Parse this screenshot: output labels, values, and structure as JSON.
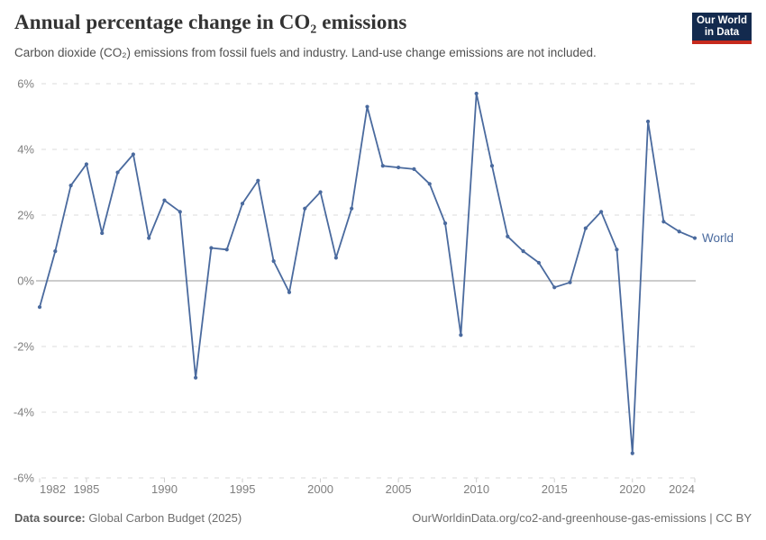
{
  "header": {
    "title": "Annual percentage change in CO₂ emissions",
    "subtitle": "Carbon dioxide (CO₂) emissions from fossil fuels and industry. Land-use change emissions are not included.",
    "logo": {
      "line1": "Our World",
      "line2": "in Data"
    }
  },
  "chart_data": {
    "type": "line",
    "title": "Annual percentage change in CO₂ emissions",
    "xlabel": "",
    "ylabel": "",
    "xlim": [
      1982,
      2024
    ],
    "ylim": [
      -6,
      6
    ],
    "grid": "horizontal-dashed",
    "legend_position": "end-of-line",
    "x_ticks": [
      1982,
      1985,
      1990,
      1995,
      2000,
      2005,
      2010,
      2015,
      2020,
      2024
    ],
    "y_ticks": [
      6,
      4,
      2,
      0,
      -2,
      -4,
      -6
    ],
    "y_tick_suffix": "%",
    "end_label": "World",
    "series": [
      {
        "name": "World",
        "x": [
          1982,
          1983,
          1984,
          1985,
          1986,
          1987,
          1988,
          1989,
          1990,
          1991,
          1992,
          1993,
          1994,
          1995,
          1996,
          1997,
          1998,
          1999,
          2000,
          2001,
          2002,
          2003,
          2004,
          2005,
          2006,
          2007,
          2008,
          2009,
          2010,
          2011,
          2012,
          2013,
          2014,
          2015,
          2016,
          2017,
          2018,
          2019,
          2020,
          2021,
          2022,
          2023,
          2024
        ],
        "values": [
          -0.8,
          0.9,
          2.9,
          3.55,
          1.45,
          3.3,
          3.85,
          1.3,
          2.45,
          2.1,
          -2.95,
          1.0,
          0.95,
          2.35,
          3.05,
          0.6,
          -0.35,
          2.2,
          2.7,
          0.7,
          2.2,
          5.3,
          3.5,
          3.45,
          3.4,
          2.95,
          1.75,
          -1.65,
          5.7,
          3.5,
          1.35,
          0.9,
          0.55,
          -0.2,
          -0.05,
          1.6,
          2.1,
          0.95,
          -5.25,
          4.85,
          1.8,
          1.5,
          1.3
        ]
      }
    ]
  },
  "footer": {
    "source_label": "Data source:",
    "source_value": "Global Carbon Budget (2025)",
    "right_text": "OurWorldinData.org/co2-and-greenhouse-gas-emissions | CC BY"
  },
  "colors": {
    "line": "#4A6A9E",
    "grid": "#DBDBDB",
    "zero_line": "#ADADAD",
    "tick_mark": "#CFCFCF",
    "tick_text": "#7F7F7F",
    "title_text": "#333333",
    "subtitle_text": "#4F4F4F",
    "footer_label": "#5C5C5C",
    "footer_text": "#6E6E6E",
    "logo_bg": "#132A4E",
    "logo_red": "#C62A1D"
  }
}
